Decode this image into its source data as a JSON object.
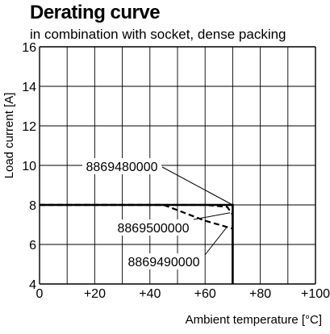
{
  "chart_data": {
    "type": "line",
    "title": "Derating curve",
    "subtitle": "in combination with socket, dense packing",
    "xlabel": "Ambient temperature [°C]",
    "ylabel": "Load current [A]",
    "xlim": [
      0,
      100
    ],
    "ylim": [
      4,
      16
    ],
    "x_ticks": [
      0,
      20,
      40,
      60,
      80,
      100
    ],
    "x_tick_labels": [
      "0",
      "+20",
      "+40",
      "+60",
      "+80",
      "+100"
    ],
    "y_ticks": [
      4,
      6,
      8,
      10,
      12,
      14,
      16
    ],
    "y_tick_labels": [
      "4",
      "6",
      "8",
      "10",
      "12",
      "14",
      "16"
    ],
    "grid": true,
    "series": [
      {
        "name": "8869480000",
        "style": "solid",
        "x": [
          0,
          70,
          70
        ],
        "y": [
          8,
          8,
          4
        ]
      },
      {
        "name": "8869500000",
        "style": "dashed",
        "x": [
          0,
          60,
          68,
          70,
          70
        ],
        "y": [
          8,
          8,
          7.9,
          7.5,
          4
        ]
      },
      {
        "name": "8869490000",
        "style": "dashed",
        "x": [
          0,
          45,
          60,
          70,
          70
        ],
        "y": [
          8,
          8,
          7.2,
          6.8,
          4
        ]
      }
    ],
    "annotations": [
      {
        "text": "8869480000",
        "points_to": [
          70,
          8
        ]
      },
      {
        "text": "8869500000",
        "points_to": [
          69,
          7.6
        ]
      },
      {
        "text": "8869490000",
        "points_to": [
          68,
          6.9
        ]
      }
    ]
  }
}
